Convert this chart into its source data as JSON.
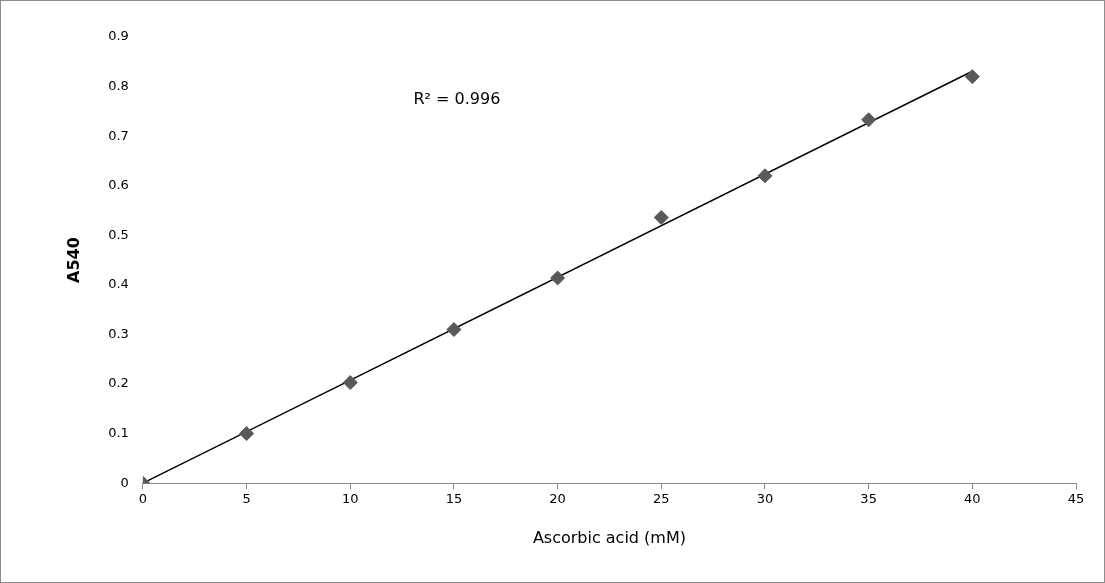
{
  "chart_data": {
    "type": "scatter",
    "xlabel": "Ascorbic acid (mM)",
    "ylabel": "A540",
    "xlim": [
      0,
      45
    ],
    "xticks": [
      0,
      5,
      10,
      15,
      20,
      25,
      30,
      35,
      40,
      45
    ],
    "ylim": [
      0,
      0.9
    ],
    "yticks": [
      0,
      0.1,
      0.2,
      0.3,
      0.4,
      0.5,
      0.6,
      0.7,
      0.8,
      0.9
    ],
    "grid": false,
    "legend": false,
    "marker": "diamond",
    "annotations": [
      "R² = 0.996"
    ],
    "series": [
      {
        "type": "scatter",
        "color": "#595959",
        "x": [
          0,
          5,
          10,
          15,
          20,
          25,
          30,
          35,
          40
        ],
        "values": [
          0,
          0.1,
          0.203,
          0.31,
          0.414,
          0.536,
          0.62,
          0.733,
          0.82
        ]
      },
      {
        "type": "line",
        "color": "#000000",
        "marker": "none",
        "x": [
          0,
          40
        ],
        "values": [
          0,
          0.831
        ]
      }
    ]
  }
}
